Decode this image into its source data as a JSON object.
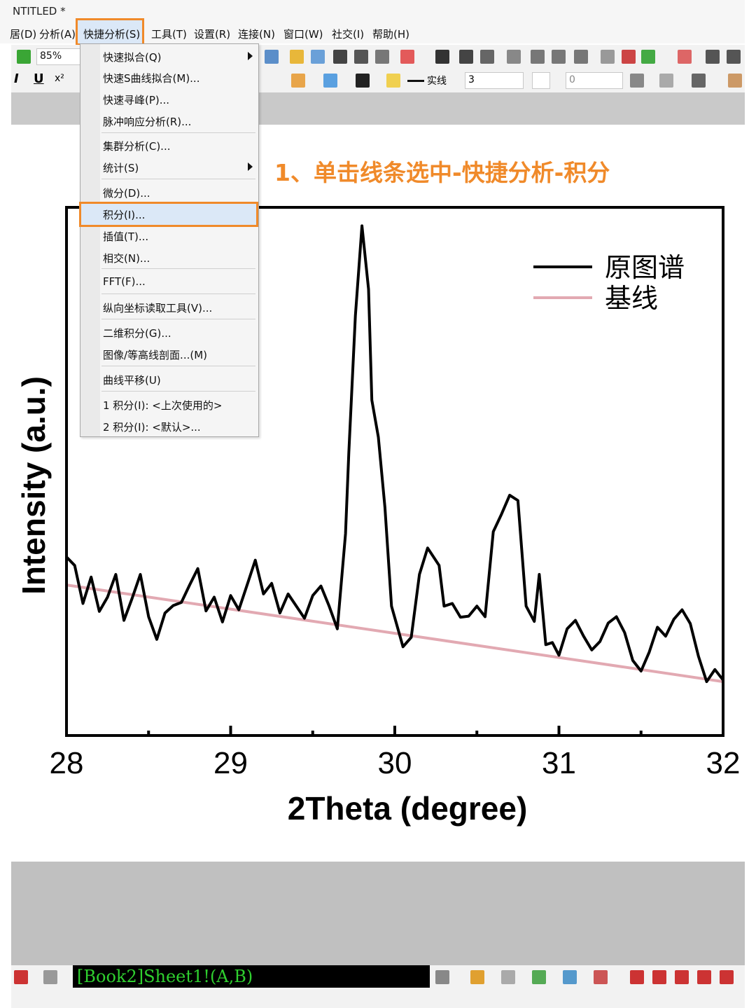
{
  "window": {
    "title": "NTITLED *"
  },
  "menubar": {
    "items": [
      {
        "label": "居(D)",
        "active": false
      },
      {
        "label": "分析(A)",
        "active": false
      },
      {
        "label": "快捷分析(S)",
        "active": true
      },
      {
        "label": "工具(T)",
        "active": false
      },
      {
        "label": "设置(R)",
        "active": false
      },
      {
        "label": "连接(N)",
        "active": false
      },
      {
        "label": "窗口(W)",
        "active": false
      },
      {
        "label": "社交(I)",
        "active": false
      },
      {
        "label": "帮助(H)",
        "active": false
      }
    ]
  },
  "toolbar": {
    "zoom": "85%",
    "line_style": "实线",
    "line_width": "3",
    "pattern_value": "0"
  },
  "dropdown": {
    "items": [
      {
        "label": "快速拟合(Q)",
        "submenu": true
      },
      {
        "label": "快速S曲线拟合(M)...",
        "submenu": false
      },
      {
        "label": "快速寻峰(P)...",
        "submenu": false
      },
      {
        "label": "脉冲响应分析(R)...",
        "submenu": false
      },
      {
        "label": "集群分析(C)...",
        "submenu": false
      },
      {
        "label": "统计(S)",
        "submenu": true
      },
      {
        "label": "微分(D)...",
        "submenu": false
      },
      {
        "label": "积分(I)...",
        "submenu": false,
        "highlighted": true
      },
      {
        "label": "插值(T)...",
        "submenu": false
      },
      {
        "label": "相交(N)...",
        "submenu": false
      },
      {
        "label": "FFT(F)...",
        "submenu": false
      },
      {
        "label": "纵向坐标读取工具(V)...",
        "submenu": false
      },
      {
        "label": "二维积分(G)...",
        "submenu": false
      },
      {
        "label": "图像/等高线剖面...(M)",
        "submenu": false
      },
      {
        "label": "曲线平移(U)",
        "submenu": false
      },
      {
        "label": "1 积分(I): <上次使用的>",
        "submenu": false
      },
      {
        "label": "2 积分(I): <默认>...",
        "submenu": false
      }
    ]
  },
  "annotation": "1、单击线条选中-快捷分析-积分",
  "status": {
    "dataset": "[Book2]Sheet1!(A,B)"
  },
  "chart_data": {
    "type": "line",
    "xlabel": "2Theta (degree)",
    "ylabel": "Intensity (a.u.)",
    "xlim": [
      28,
      32
    ],
    "ylim": [
      0,
      1
    ],
    "xticks": [
      28,
      29,
      30,
      31,
      32
    ],
    "xtick_labels": [
      "28",
      "29",
      "30",
      "31",
      "32"
    ],
    "legend_position": "top-right",
    "grid": false,
    "series": [
      {
        "name": "原图谱",
        "color": "#000000",
        "x": [
          28.0,
          28.05,
          28.1,
          28.15,
          28.2,
          28.25,
          28.3,
          28.35,
          28.4,
          28.45,
          28.5,
          28.55,
          28.6,
          28.65,
          28.7,
          28.75,
          28.8,
          28.85,
          28.9,
          28.95,
          29.0,
          29.05,
          29.1,
          29.15,
          29.2,
          29.25,
          29.3,
          29.35,
          29.4,
          29.45,
          29.5,
          29.55,
          29.6,
          29.65,
          29.7,
          29.72,
          29.76,
          29.8,
          29.84,
          29.86,
          29.9,
          29.94,
          29.98,
          30.05,
          30.1,
          30.15,
          30.2,
          30.27,
          30.3,
          30.35,
          30.4,
          30.45,
          30.5,
          30.55,
          30.6,
          30.65,
          30.7,
          30.75,
          30.8,
          30.85,
          30.88,
          30.92,
          30.96,
          31.0,
          31.05,
          31.1,
          31.15,
          31.2,
          31.25,
          31.3,
          31.35,
          31.4,
          31.45,
          31.5,
          31.55,
          31.6,
          31.65,
          31.7,
          31.75,
          31.8,
          31.85,
          31.9,
          31.95,
          32.0
        ],
        "y": [
          0.338,
          0.322,
          0.25,
          0.3,
          0.235,
          0.262,
          0.305,
          0.218,
          0.26,
          0.305,
          0.225,
          0.182,
          0.232,
          0.246,
          0.252,
          0.285,
          0.316,
          0.236,
          0.262,
          0.215,
          0.265,
          0.238,
          0.285,
          0.332,
          0.268,
          0.288,
          0.232,
          0.268,
          0.245,
          0.222,
          0.265,
          0.283,
          0.245,
          0.202,
          0.382,
          0.535,
          0.795,
          0.965,
          0.845,
          0.635,
          0.565,
          0.432,
          0.245,
          0.168,
          0.186,
          0.305,
          0.355,
          0.322,
          0.245,
          0.25,
          0.224,
          0.226,
          0.245,
          0.225,
          0.386,
          0.419,
          0.455,
          0.445,
          0.245,
          0.216,
          0.305,
          0.172,
          0.176,
          0.152,
          0.202,
          0.218,
          0.188,
          0.162,
          0.178,
          0.213,
          0.225,
          0.195,
          0.142,
          0.122,
          0.158,
          0.205,
          0.188,
          0.22,
          0.238,
          0.212,
          0.15,
          0.102,
          0.125,
          0.105
        ]
      },
      {
        "name": "基线",
        "color": "#e2a9b2",
        "x": [
          28.0,
          32.0
        ],
        "y": [
          0.285,
          0.102
        ]
      }
    ]
  }
}
